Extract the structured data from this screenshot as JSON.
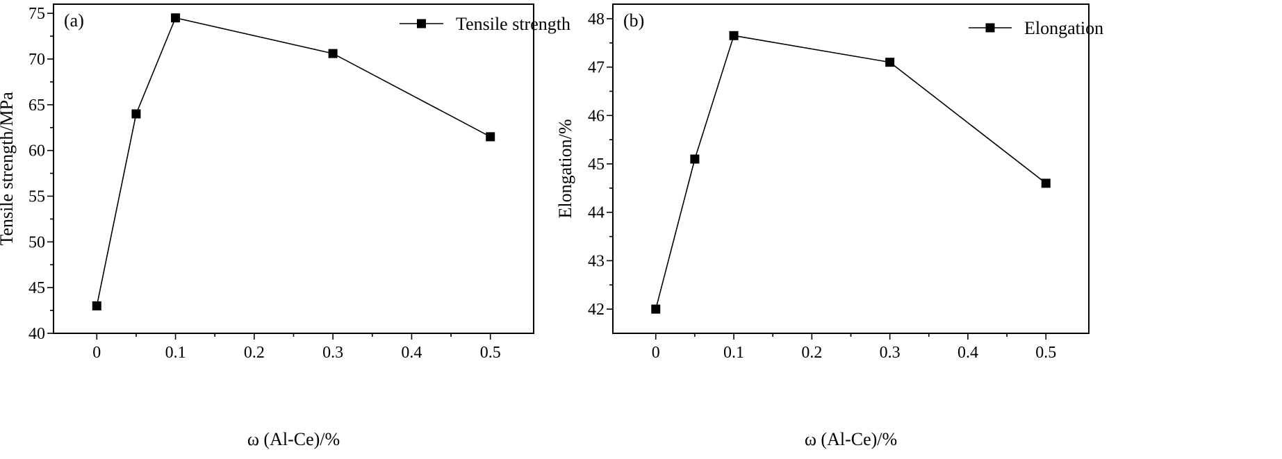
{
  "chart_data": [
    {
      "type": "line",
      "panel_label": "(a)",
      "x": [
        0,
        0.05,
        0.1,
        0.3,
        0.5
      ],
      "series": [
        {
          "name": "Tensile strength",
          "values": [
            43.0,
            64.0,
            74.5,
            70.6,
            61.5
          ]
        }
      ],
      "xlabel": "ω (Al-Ce)/%",
      "ylabel": "Tensile strength/MPa",
      "xlim": [
        -0.055,
        0.555
      ],
      "ylim": [
        40,
        76
      ],
      "xticks": [
        0,
        0.1,
        0.2,
        0.3,
        0.4,
        0.5
      ],
      "xtick_labels": [
        "0",
        "0.1",
        "0.2",
        "0.3",
        "0.4",
        "0.5"
      ],
      "yticks": [
        40,
        45,
        50,
        55,
        60,
        65,
        70,
        75
      ],
      "ytick_labels": [
        "40",
        "45",
        "50",
        "55",
        "60",
        "65",
        "70",
        "75"
      ],
      "legend_position": "top-right",
      "grid": false,
      "marker": "filled-square",
      "color": "#000000"
    },
    {
      "type": "line",
      "panel_label": "(b)",
      "x": [
        0,
        0.05,
        0.1,
        0.3,
        0.5
      ],
      "series": [
        {
          "name": "Elongation",
          "values": [
            42.0,
            45.1,
            47.65,
            47.1,
            44.6
          ]
        }
      ],
      "xlabel": "ω (Al-Ce)/%",
      "ylabel": "Elongation/%",
      "xlim": [
        -0.055,
        0.555
      ],
      "ylim": [
        41.5,
        48.3
      ],
      "xticks": [
        0,
        0.1,
        0.2,
        0.3,
        0.4,
        0.5
      ],
      "xtick_labels": [
        "0",
        "0.1",
        "0.2",
        "0.3",
        "0.4",
        "0.5"
      ],
      "yticks": [
        42,
        43,
        44,
        45,
        46,
        47,
        48
      ],
      "ytick_labels": [
        "42",
        "43",
        "44",
        "45",
        "46",
        "47",
        "48"
      ],
      "legend_position": "top-right",
      "grid": false,
      "marker": "filled-square",
      "color": "#000000"
    }
  ]
}
